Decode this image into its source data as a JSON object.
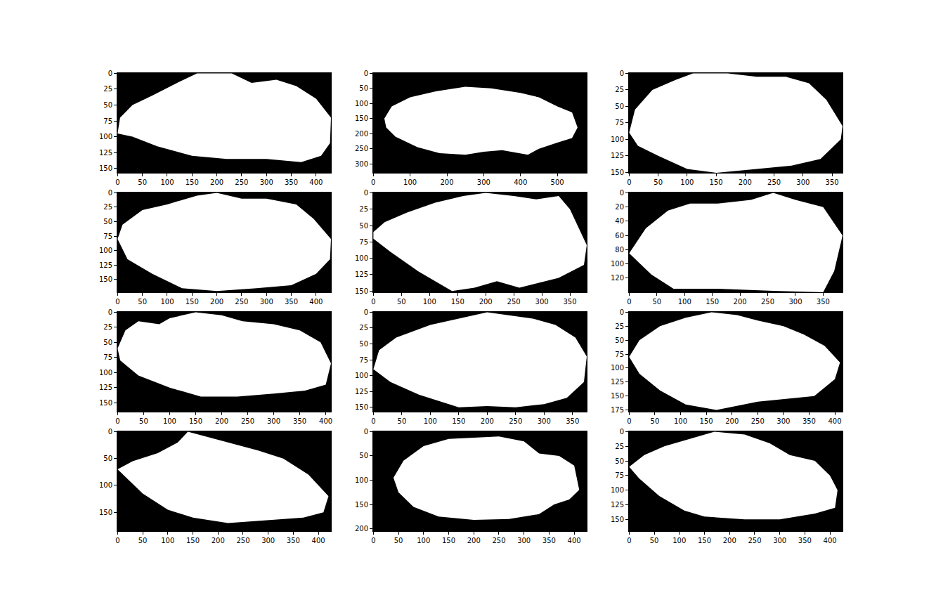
{
  "chart_data": [
    {
      "type": "mask",
      "color": "#ffffff",
      "grid": false,
      "xlim": [
        -0.5,
        430
      ],
      "ylim": [
        157,
        -0.5
      ],
      "xticks": [
        0,
        50,
        100,
        150,
        200,
        250,
        300,
        350,
        400
      ],
      "yticks": [
        0,
        25,
        50,
        75,
        100,
        125,
        150
      ],
      "outline": {
        "x": [
          0,
          5,
          30,
          70,
          120,
          160,
          230,
          270,
          320,
          360,
          400,
          430,
          428,
          410,
          370,
          300,
          220,
          150,
          80,
          30
        ],
        "y": [
          95,
          70,
          50,
          35,
          15,
          0,
          0,
          15,
          10,
          20,
          40,
          70,
          110,
          130,
          140,
          135,
          135,
          130,
          115,
          100
        ]
      }
    },
    {
      "type": "mask",
      "color": "#ffffff",
      "grid": false,
      "xlim": [
        -0.5,
        580
      ],
      "ylim": [
        330,
        -0.5
      ],
      "xticks": [
        0,
        100,
        200,
        300,
        400,
        500
      ],
      "yticks": [
        0,
        50,
        100,
        150,
        200,
        250,
        300
      ],
      "outline": {
        "x": [
          30,
          50,
          100,
          170,
          250,
          320,
          400,
          450,
          500,
          540,
          555,
          540,
          500,
          450,
          420,
          350,
          300,
          250,
          180,
          120,
          60,
          35
        ],
        "y": [
          150,
          110,
          80,
          60,
          45,
          50,
          65,
          80,
          110,
          130,
          180,
          215,
          230,
          250,
          270,
          255,
          260,
          270,
          265,
          245,
          210,
          180
        ]
      }
    },
    {
      "type": "mask",
      "color": "#ffffff",
      "grid": false,
      "xlim": [
        -0.5,
        368
      ],
      "ylim": [
        151,
        -0.5
      ],
      "xticks": [
        0,
        50,
        100,
        150,
        200,
        250,
        300,
        350
      ],
      "yticks": [
        0,
        25,
        50,
        75,
        100,
        125,
        150
      ],
      "outline": {
        "x": [
          0,
          10,
          40,
          80,
          110,
          170,
          220,
          270,
          310,
          340,
          368,
          365,
          330,
          280,
          220,
          150,
          100,
          50,
          15
        ],
        "y": [
          90,
          55,
          25,
          10,
          0,
          0,
          5,
          5,
          15,
          40,
          80,
          100,
          130,
          140,
          145,
          151,
          145,
          125,
          110
        ]
      }
    },
    {
      "type": "mask",
      "color": "#ffffff",
      "grid": false,
      "xlim": [
        -0.5,
        430
      ],
      "ylim": [
        172,
        -0.5
      ],
      "xticks": [
        0,
        50,
        100,
        150,
        200,
        250,
        300,
        350,
        400
      ],
      "yticks": [
        0,
        25,
        50,
        75,
        100,
        125,
        150
      ],
      "outline": {
        "x": [
          0,
          10,
          50,
          100,
          160,
          200,
          250,
          300,
          360,
          395,
          430,
          428,
          400,
          350,
          280,
          200,
          130,
          70,
          20
        ],
        "y": [
          80,
          55,
          30,
          20,
          5,
          0,
          10,
          10,
          20,
          45,
          80,
          115,
          140,
          160,
          165,
          170,
          165,
          140,
          115
        ]
      }
    },
    {
      "type": "mask",
      "color": "#ffffff",
      "grid": false,
      "xlim": [
        -0.5,
        380
      ],
      "ylim": [
        152,
        -0.5
      ],
      "xticks": [
        0,
        50,
        100,
        150,
        200,
        250,
        300,
        350
      ],
      "yticks": [
        0,
        25,
        50,
        75,
        100,
        125,
        150
      ],
      "outline": {
        "x": [
          0,
          20,
          60,
          110,
          160,
          200,
          250,
          290,
          330,
          350,
          380,
          375,
          330,
          260,
          220,
          180,
          140,
          80,
          30,
          0
        ],
        "y": [
          60,
          45,
          30,
          15,
          5,
          0,
          5,
          10,
          5,
          25,
          80,
          110,
          130,
          145,
          135,
          145,
          150,
          120,
          90,
          70
        ]
      }
    },
    {
      "type": "mask",
      "color": "#ffffff",
      "grid": false,
      "xlim": [
        -0.5,
        385
      ],
      "ylim": [
        140,
        -0.5
      ],
      "xticks": [
        0,
        50,
        100,
        150,
        200,
        250,
        300,
        350
      ],
      "yticks": [
        0,
        20,
        40,
        60,
        80,
        100,
        120
      ],
      "outline": {
        "x": [
          0,
          30,
          70,
          110,
          160,
          220,
          260,
          300,
          350,
          385,
          370,
          350,
          260,
          160,
          80,
          40
        ],
        "y": [
          85,
          50,
          25,
          15,
          15,
          10,
          0,
          10,
          20,
          60,
          110,
          140,
          138,
          135,
          135,
          115
        ]
      }
    },
    {
      "type": "mask",
      "color": "#ffffff",
      "grid": false,
      "xlim": [
        -0.5,
        410
      ],
      "ylim": [
        165,
        -0.5
      ],
      "xticks": [
        0,
        50,
        100,
        150,
        200,
        250,
        300,
        350,
        400
      ],
      "yticks": [
        0,
        25,
        50,
        75,
        100,
        125,
        150
      ],
      "outline": {
        "x": [
          0,
          15,
          40,
          80,
          100,
          150,
          200,
          240,
          300,
          350,
          390,
          410,
          400,
          360,
          300,
          230,
          160,
          100,
          40,
          5
        ],
        "y": [
          60,
          30,
          15,
          20,
          10,
          0,
          5,
          15,
          20,
          30,
          50,
          85,
          120,
          130,
          135,
          140,
          140,
          125,
          105,
          80
        ]
      }
    },
    {
      "type": "mask",
      "color": "#ffffff",
      "grid": false,
      "xlim": [
        -0.5,
        375
      ],
      "ylim": [
        157,
        -0.5
      ],
      "xticks": [
        0,
        50,
        100,
        150,
        200,
        250,
        300,
        350
      ],
      "yticks": [
        0,
        25,
        50,
        75,
        100,
        125,
        150
      ],
      "outline": {
        "x": [
          0,
          10,
          40,
          100,
          150,
          200,
          240,
          280,
          320,
          355,
          375,
          370,
          340,
          300,
          250,
          200,
          150,
          80,
          30
        ],
        "y": [
          90,
          60,
          40,
          20,
          10,
          0,
          5,
          10,
          20,
          40,
          70,
          110,
          135,
          145,
          150,
          148,
          150,
          130,
          110
        ]
      }
    },
    {
      "type": "mask",
      "color": "#ffffff",
      "grid": false,
      "xlim": [
        -0.5,
        415
      ],
      "ylim": [
        178,
        -0.5
      ],
      "xticks": [
        0,
        50,
        100,
        150,
        200,
        250,
        300,
        350,
        400
      ],
      "yticks": [
        0,
        25,
        50,
        75,
        100,
        125,
        150,
        175
      ],
      "outline": {
        "x": [
          0,
          20,
          60,
          110,
          160,
          210,
          250,
          300,
          340,
          380,
          410,
          400,
          360,
          300,
          250,
          170,
          110,
          60,
          20
        ],
        "y": [
          80,
          50,
          25,
          10,
          0,
          5,
          15,
          25,
          40,
          60,
          90,
          120,
          150,
          155,
          160,
          175,
          165,
          140,
          110
        ]
      }
    },
    {
      "type": "mask",
      "color": "#ffffff",
      "grid": false,
      "xlim": [
        -0.5,
        425
      ],
      "ylim": [
        185,
        -0.5
      ],
      "xticks": [
        0,
        50,
        100,
        150,
        200,
        250,
        300,
        350,
        400
      ],
      "yticks": [
        0,
        50,
        100,
        150
      ],
      "outline": {
        "x": [
          0,
          30,
          80,
          120,
          140,
          160,
          220,
          280,
          330,
          380,
          420,
          410,
          370,
          300,
          220,
          150,
          100,
          50
        ],
        "y": [
          70,
          55,
          40,
          20,
          0,
          5,
          20,
          35,
          50,
          80,
          120,
          150,
          160,
          165,
          170,
          160,
          145,
          115
        ]
      }
    },
    {
      "type": "mask",
      "color": "#ffffff",
      "grid": false,
      "xlim": [
        -0.5,
        425
      ],
      "ylim": [
        205,
        -0.5
      ],
      "xticks": [
        0,
        50,
        100,
        150,
        200,
        250,
        300,
        350,
        400
      ],
      "yticks": [
        0,
        50,
        100,
        150,
        200
      ],
      "outline": {
        "x": [
          40,
          60,
          100,
          150,
          250,
          300,
          330,
          370,
          400,
          410,
          390,
          360,
          330,
          270,
          200,
          130,
          80,
          50
        ],
        "y": [
          95,
          60,
          30,
          15,
          10,
          20,
          45,
          50,
          70,
          120,
          140,
          150,
          170,
          180,
          182,
          175,
          155,
          125
        ]
      }
    },
    {
      "type": "mask",
      "color": "#ffffff",
      "grid": false,
      "xlim": [
        -0.5,
        425
      ],
      "ylim": [
        170,
        -0.5
      ],
      "xticks": [
        0,
        50,
        100,
        150,
        200,
        250,
        300,
        350,
        400
      ],
      "yticks": [
        0,
        25,
        50,
        75,
        100,
        125,
        150
      ],
      "outline": {
        "x": [
          0,
          30,
          70,
          110,
          170,
          230,
          280,
          320,
          370,
          400,
          415,
          410,
          370,
          300,
          230,
          150,
          110,
          60,
          20
        ],
        "y": [
          60,
          40,
          25,
          15,
          0,
          5,
          20,
          40,
          50,
          75,
          100,
          130,
          140,
          150,
          150,
          145,
          135,
          110,
          80
        ]
      }
    }
  ]
}
